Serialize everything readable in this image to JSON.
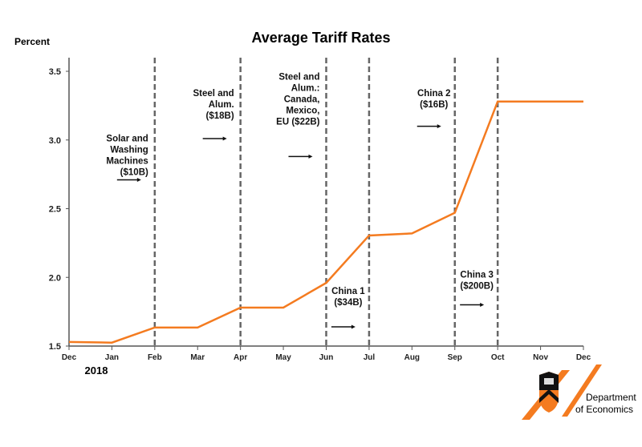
{
  "chart_data": {
    "type": "line",
    "title": "Average Tariff Rates",
    "ylabel": "Percent",
    "xlabel": "",
    "year_label": "2018",
    "ylim": [
      1.5,
      3.6
    ],
    "yticks": [
      1.5,
      2.0,
      2.5,
      3.0,
      3.5
    ],
    "ytick_labels": [
      "1.5",
      "2.0",
      "2.5",
      "3.0",
      "3.5"
    ],
    "categories": [
      "Dec",
      "Jan",
      "Feb",
      "Mar",
      "Apr",
      "May",
      "Jun",
      "Jul",
      "Aug",
      "Sep",
      "Oct",
      "Nov",
      "Dec"
    ],
    "series": [
      {
        "name": "Average Tariff Rate",
        "color": "#f47b20",
        "values": [
          1.53,
          1.525,
          1.635,
          1.635,
          1.78,
          1.78,
          1.96,
          2.305,
          2.32,
          2.47,
          3.28,
          3.28,
          3.28
        ]
      }
    ],
    "event_lines": [
      2,
      4,
      6,
      7,
      9,
      10
    ],
    "annotations": [
      {
        "lines": [
          "Solar and",
          "Washing",
          "Machines",
          "($10B)"
        ],
        "event": 2,
        "level": 2.99,
        "arrow": 2.71,
        "align": "right"
      },
      {
        "lines": [
          "Steel and",
          "Alum.",
          "($18B)"
        ],
        "event": 4,
        "level": 3.32,
        "arrow": 3.01,
        "align": "right"
      },
      {
        "lines": [
          "Steel and",
          "Alum.:",
          "Canada,",
          "Mexico,",
          "EU ($22B)"
        ],
        "event": 6,
        "level": 3.44,
        "arrow": 2.88,
        "align": "right"
      },
      {
        "lines": [
          "China 1",
          "($34B)"
        ],
        "event": 7,
        "level": 1.88,
        "arrow": 1.64,
        "align": "center"
      },
      {
        "lines": [
          "China 2",
          "($16B)"
        ],
        "event": 9,
        "level": 3.32,
        "arrow": 3.1,
        "align": "center"
      },
      {
        "lines": [
          "China 3",
          "($200B)"
        ],
        "event": 10,
        "level": 2.0,
        "arrow": 1.8,
        "align": "center"
      }
    ],
    "grid": false
  },
  "logo": {
    "text_line1": "Department",
    "text_line2": "of Economics"
  }
}
